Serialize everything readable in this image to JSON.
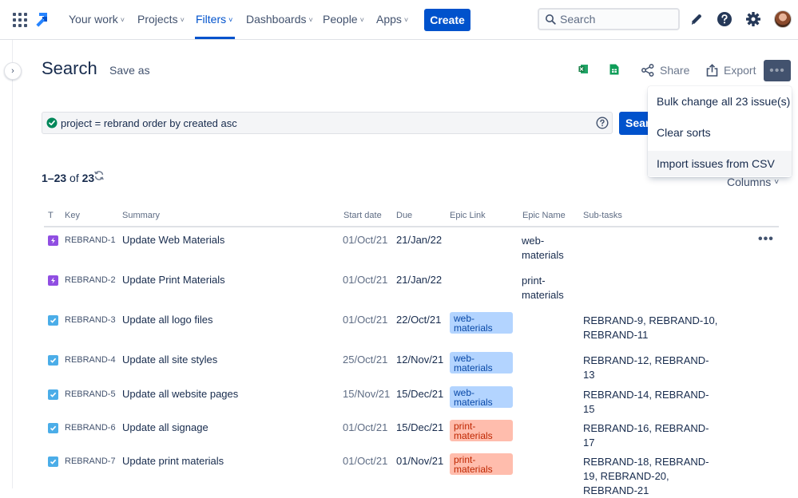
{
  "topnav": {
    "items": [
      {
        "label": "Your work"
      },
      {
        "label": "Projects"
      },
      {
        "label": "Filters"
      },
      {
        "label": "Dashboards"
      },
      {
        "label": "People"
      },
      {
        "label": "Apps"
      }
    ],
    "create_label": "Create",
    "search_placeholder": "Search",
    "accent": "#0052cc"
  },
  "header": {
    "title": "Search",
    "save_as": "Save as",
    "share": "Share",
    "export": "Export",
    "more": "•••"
  },
  "jql": {
    "query": "project = rebrand order by created asc",
    "search_label": "Search"
  },
  "dropdown": {
    "items": [
      {
        "label": "Bulk change all 23 issue(s)"
      },
      {
        "label": "Clear sorts"
      },
      {
        "label": "Import issues from CSV"
      }
    ]
  },
  "results": {
    "range": "1–23",
    "of": "of",
    "total": "23",
    "columns_label": "Columns"
  },
  "table": {
    "headers": {
      "type": "T",
      "key": "Key",
      "summary": "Summary",
      "start": "Start date",
      "due": "Due",
      "epic_link": "Epic Link",
      "epic_name": "Epic Name",
      "subtasks": "Sub-tasks"
    },
    "rows": [
      {
        "type": "epic",
        "key": "REBRAND-1",
        "summary": "Update Web Materials",
        "start": "01/Oct/21",
        "due": "21/Jan/22",
        "epic_link": "",
        "epic_name": "web-\nmaterials",
        "subtasks": ""
      },
      {
        "type": "epic",
        "key": "REBRAND-2",
        "summary": "Update Print Materials",
        "start": "01/Oct/21",
        "due": "21/Jan/22",
        "epic_link": "",
        "epic_name": "print-\nmaterials",
        "subtasks": ""
      },
      {
        "type": "task",
        "key": "REBRAND-3",
        "summary": "Update all logo files",
        "start": "01/Oct/21",
        "due": "22/Oct/21",
        "epic_link": "web-\nmaterials",
        "epic_name": "",
        "subtasks": "REBRAND-9, REBRAND-10, REBRAND-11"
      },
      {
        "type": "task",
        "key": "REBRAND-4",
        "summary": "Update all site styles",
        "start": "25/Oct/21",
        "due": "12/Nov/21",
        "epic_link": "web-\nmaterials",
        "epic_name": "",
        "subtasks": "REBRAND-12, REBRAND-13"
      },
      {
        "type": "task",
        "key": "REBRAND-5",
        "summary": "Update all website pages",
        "start": "15/Nov/21",
        "due": "15/Dec/21",
        "epic_link": "web-\nmaterials",
        "epic_name": "",
        "subtasks": "REBRAND-14, REBRAND-15"
      },
      {
        "type": "task",
        "key": "REBRAND-6",
        "summary": "Update all signage",
        "start": "01/Oct/21",
        "due": "15/Dec/21",
        "epic_link": "print-\nmaterials",
        "epic_name": "",
        "subtasks": "REBRAND-16, REBRAND-17"
      },
      {
        "type": "task",
        "key": "REBRAND-7",
        "summary": "Update print materials",
        "start": "01/Oct/21",
        "due": "01/Nov/21",
        "epic_link": "print-\nmaterials",
        "epic_name": "",
        "subtasks": "REBRAND-18, REBRAND-19, REBRAND-20, REBRAND-21"
      }
    ],
    "row_more": "•••"
  }
}
